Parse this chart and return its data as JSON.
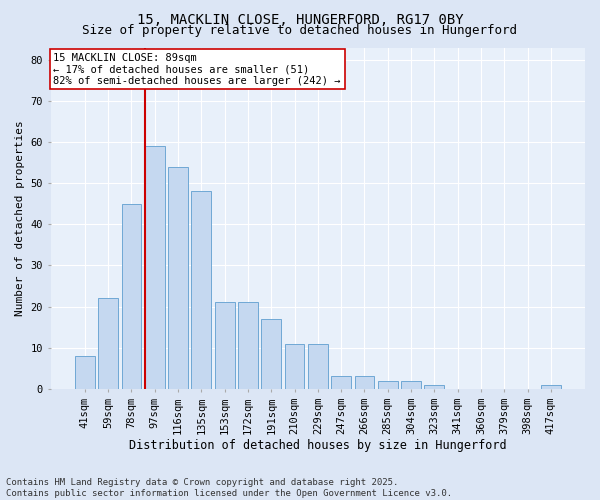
{
  "title": "15, MACKLIN CLOSE, HUNGERFORD, RG17 0BY",
  "subtitle": "Size of property relative to detached houses in Hungerford",
  "xlabel": "Distribution of detached houses by size in Hungerford",
  "ylabel": "Number of detached properties",
  "categories": [
    "41sqm",
    "59sqm",
    "78sqm",
    "97sqm",
    "116sqm",
    "135sqm",
    "153sqm",
    "172sqm",
    "191sqm",
    "210sqm",
    "229sqm",
    "247sqm",
    "266sqm",
    "285sqm",
    "304sqm",
    "323sqm",
    "341sqm",
    "360sqm",
    "379sqm",
    "398sqm",
    "417sqm"
  ],
  "values": [
    8,
    22,
    45,
    59,
    54,
    48,
    21,
    21,
    17,
    11,
    11,
    3,
    3,
    2,
    2,
    1,
    0,
    0,
    0,
    0,
    1
  ],
  "bar_color": "#c5d8f0",
  "bar_edge_color": "#6fa8d5",
  "vline_index": 2.575,
  "vline_color": "#cc0000",
  "annotation_text": "15 MACKLIN CLOSE: 89sqm\n← 17% of detached houses are smaller (51)\n82% of semi-detached houses are larger (242) →",
  "annotation_box_color": "#ffffff",
  "annotation_box_edge": "#cc0000",
  "ylim": [
    0,
    83
  ],
  "yticks": [
    0,
    10,
    20,
    30,
    40,
    50,
    60,
    70,
    80
  ],
  "bg_color": "#dce6f5",
  "plot_bg_color": "#e8f0fa",
  "footer": "Contains HM Land Registry data © Crown copyright and database right 2025.\nContains public sector information licensed under the Open Government Licence v3.0.",
  "title_fontsize": 10,
  "subtitle_fontsize": 9,
  "xlabel_fontsize": 8.5,
  "ylabel_fontsize": 8,
  "tick_fontsize": 7.5,
  "annotation_fontsize": 7.5,
  "footer_fontsize": 6.5
}
